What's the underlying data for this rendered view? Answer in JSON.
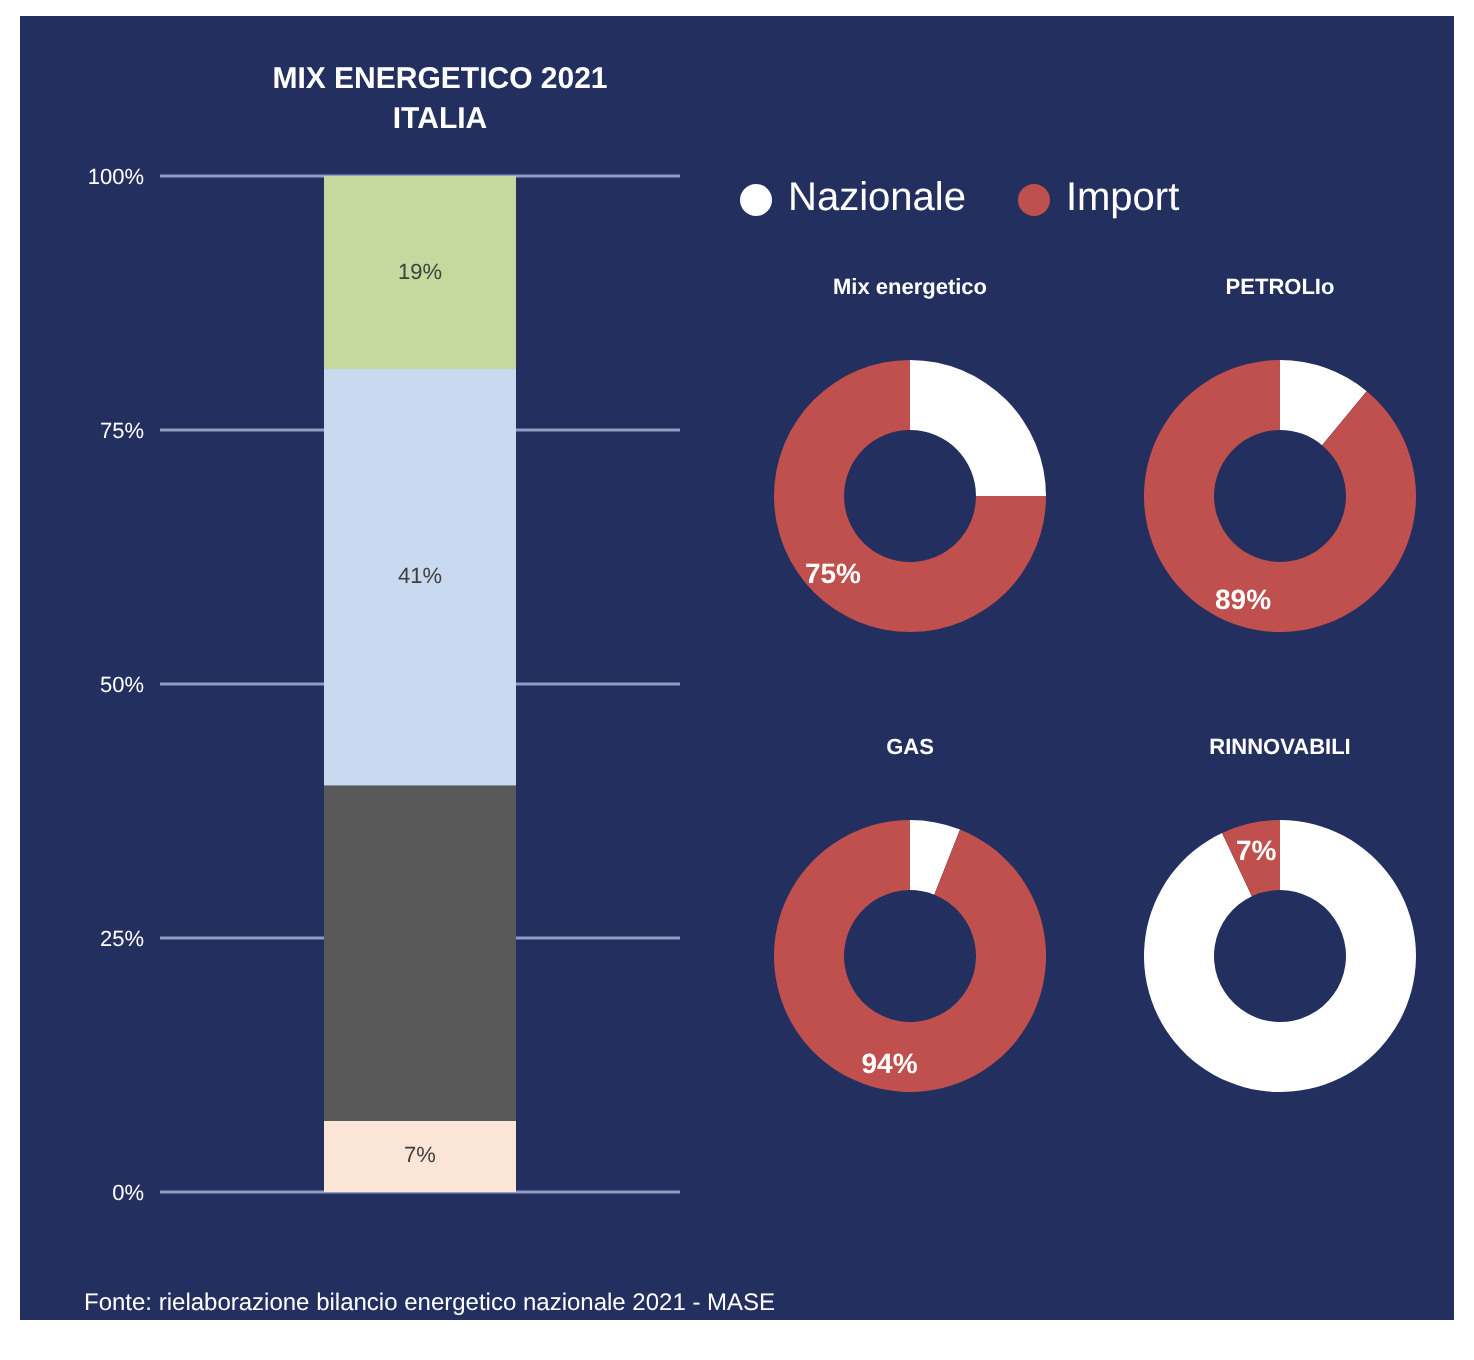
{
  "chart_data": [
    {
      "type": "bar",
      "title": "MIX ENERGETICO 2021 ITALIA",
      "categories": [
        null
      ],
      "stacked": true,
      "series": [
        {
          "color": "#fbe5d6",
          "values": [
            7
          ],
          "value_labels": [
            "7%"
          ]
        },
        {
          "color": "#595959",
          "values": [
            33
          ],
          "value_labels": [
            null
          ]
        },
        {
          "color": "#c9d9f0",
          "values": [
            41
          ],
          "value_labels": [
            "41%"
          ]
        },
        {
          "color": "#c5d89e",
          "values": [
            19
          ],
          "value_labels": [
            "19%"
          ]
        }
      ],
      "ylim": [
        0,
        100
      ],
      "yticks": [
        {
          "value": 0,
          "label": "0%"
        },
        {
          "value": 25,
          "label": "25%"
        },
        {
          "value": 50,
          "label": "50%"
        },
        {
          "value": 75,
          "label": "75%"
        },
        {
          "value": 100,
          "label": "100%"
        }
      ],
      "grid": "y",
      "annotations": [
        "Fonte: rielaborazione bilancio energetico nazionale 2021 -  MASE"
      ]
    },
    {
      "type": "donut",
      "title": "Mix energetico",
      "categories": [
        "Nazionale",
        "Import"
      ],
      "values": [
        25,
        75
      ],
      "colors": [
        "#ffffff",
        "#c0504d"
      ],
      "value_labels": [
        null,
        "75%"
      ],
      "legend": "top"
    },
    {
      "type": "donut",
      "title": "PETROLIo",
      "categories": [
        null,
        null
      ],
      "values": [
        11,
        89
      ],
      "colors": [
        "#ffffff",
        "#c0504d"
      ],
      "value_labels": [
        null,
        "89%"
      ]
    },
    {
      "type": "donut",
      "title": "GAS",
      "categories": [
        null,
        null
      ],
      "values": [
        6,
        94
      ],
      "colors": [
        "#ffffff",
        "#c0504d"
      ],
      "value_labels": [
        null,
        "94%"
      ]
    },
    {
      "type": "donut",
      "title": "RINNOVABILI",
      "categories": [
        null,
        null
      ],
      "values": [
        93,
        7
      ],
      "colors": [
        "#ffffff",
        "#c0504d"
      ],
      "value_labels": [
        null,
        "7%"
      ]
    }
  ]
}
